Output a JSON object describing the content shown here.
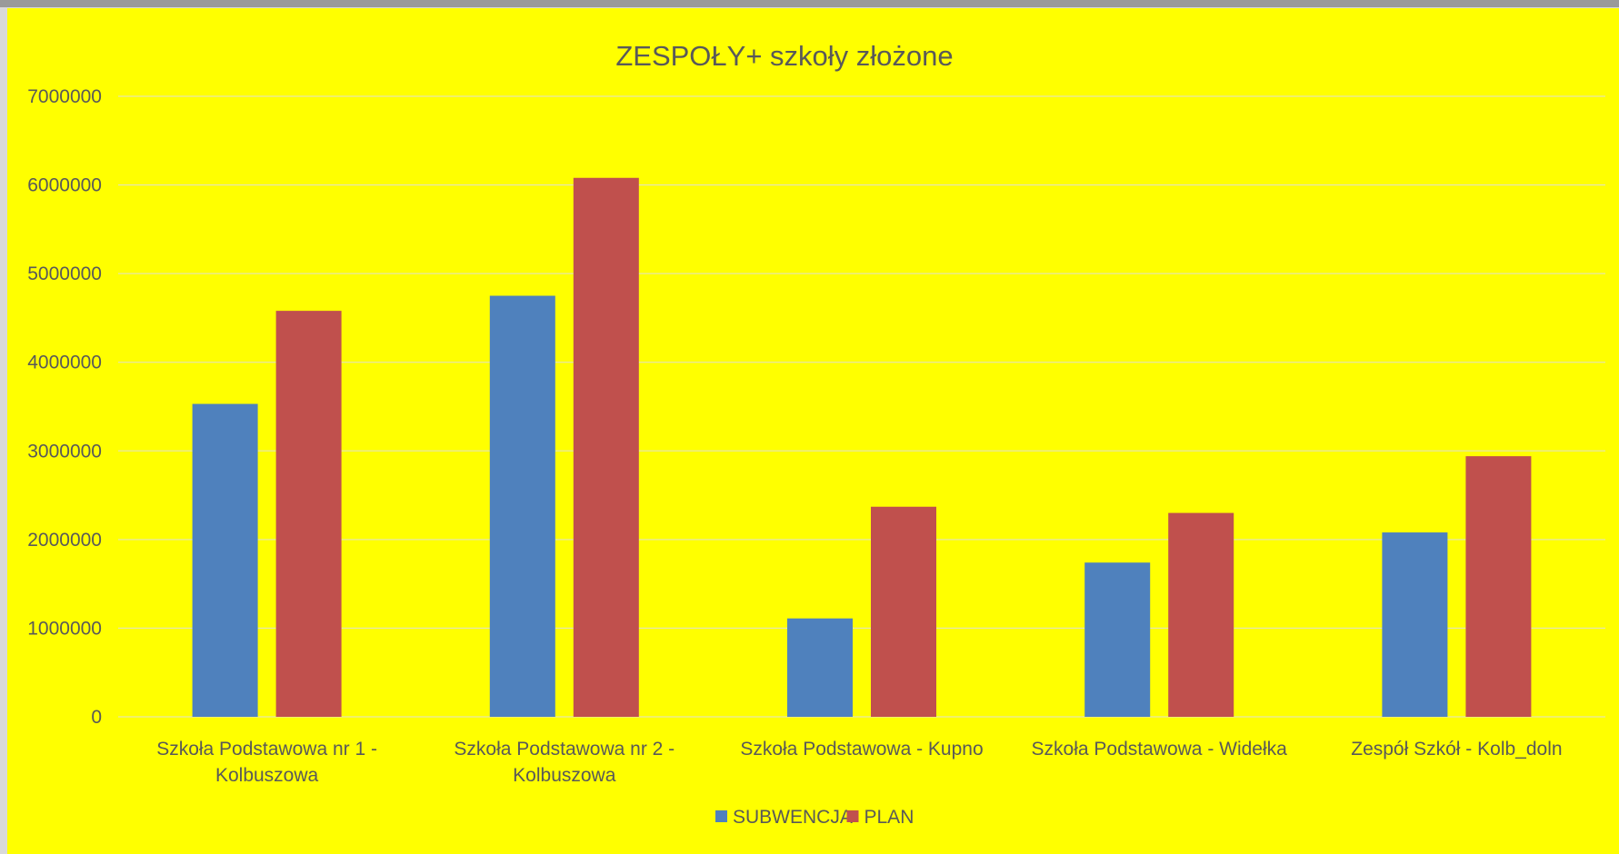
{
  "chart_data": {
    "type": "bar",
    "title": "ZESPOŁY+ szkoły złożone",
    "xlabel": "",
    "ylabel": "",
    "categories": [
      [
        "Szkoła Podstawowa nr 1 -",
        "Kolbuszowa"
      ],
      [
        "Szkoła Podstawowa nr 2 -",
        "Kolbuszowa"
      ],
      [
        "Szkoła Podstawowa - Kupno"
      ],
      [
        "Szkoła Podstawowa - Widełka"
      ],
      [
        "Zespół Szkół - Kolb_doln"
      ]
    ],
    "series": [
      {
        "name": "SUBWENCJA",
        "color": "#4f81bd",
        "values": [
          3530000,
          4750000,
          1110000,
          1740000,
          2080000
        ]
      },
      {
        "name": "PLAN",
        "color": "#c0504d",
        "values": [
          4580000,
          6080000,
          2370000,
          2300000,
          2940000
        ]
      }
    ],
    "ylim": [
      0,
      7000000
    ],
    "yticks": [
      "0",
      "1000000",
      "2000000",
      "3000000",
      "4000000",
      "5000000",
      "6000000",
      "7000000"
    ],
    "grid": true,
    "legend": "bottom",
    "background": "#ffff00",
    "gridline_color": "#e6e6a8"
  }
}
